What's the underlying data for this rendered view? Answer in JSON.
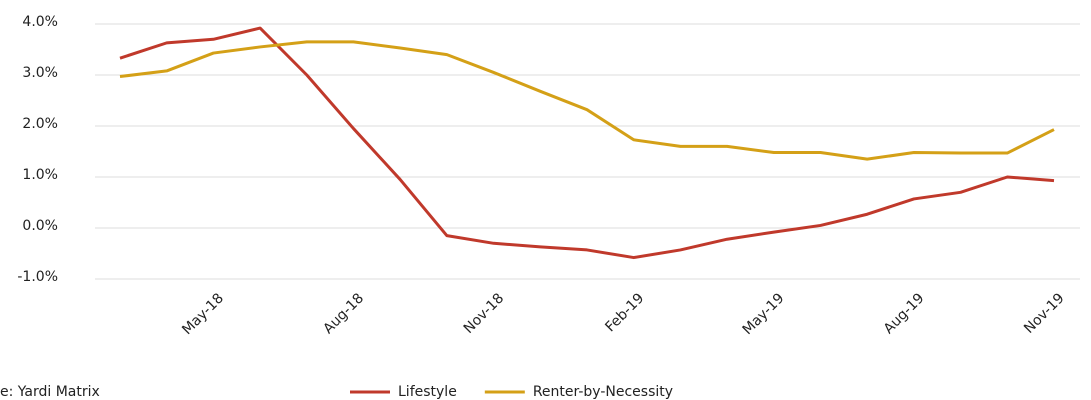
{
  "chart_data": {
    "type": "line",
    "categories": [
      null,
      null,
      "May-18",
      null,
      null,
      "Aug-18",
      null,
      null,
      "Nov-18",
      null,
      null,
      "Feb-19",
      null,
      null,
      "May-19",
      null,
      null,
      "Aug-19",
      null,
      null,
      "Nov-19"
    ],
    "series": [
      {
        "name": "Lifestyle",
        "color": "#c0392b",
        "values": [
          3.33,
          3.63,
          3.7,
          3.92,
          3.0,
          1.95,
          0.95,
          -0.15,
          -0.3,
          -0.37,
          -0.43,
          -0.58,
          -0.43,
          -0.22,
          -0.08,
          0.05,
          0.27,
          0.57,
          0.7,
          1.0,
          0.93
        ]
      },
      {
        "name": "Renter-by-Necessity",
        "color": "#d4a017",
        "values": [
          2.97,
          3.08,
          3.43,
          3.55,
          3.65,
          3.65,
          3.53,
          3.4,
          3.05,
          2.68,
          2.32,
          1.73,
          1.6,
          1.6,
          1.48,
          1.48,
          1.35,
          1.48,
          1.47,
          1.47,
          1.93
        ]
      }
    ],
    "ylim": [
      -1,
      4
    ],
    "yticks": [
      {
        "value": -1,
        "label": "-1.0%"
      },
      {
        "value": 0,
        "label": "0.0%"
      },
      {
        "value": 1,
        "label": "1.0%"
      },
      {
        "value": 2,
        "label": "2.0%"
      },
      {
        "value": 3,
        "label": "3.0%"
      },
      {
        "value": 4,
        "label": "4.0%"
      }
    ],
    "grid": true,
    "source": "e: Yardi Matrix",
    "legend": "bottom"
  }
}
